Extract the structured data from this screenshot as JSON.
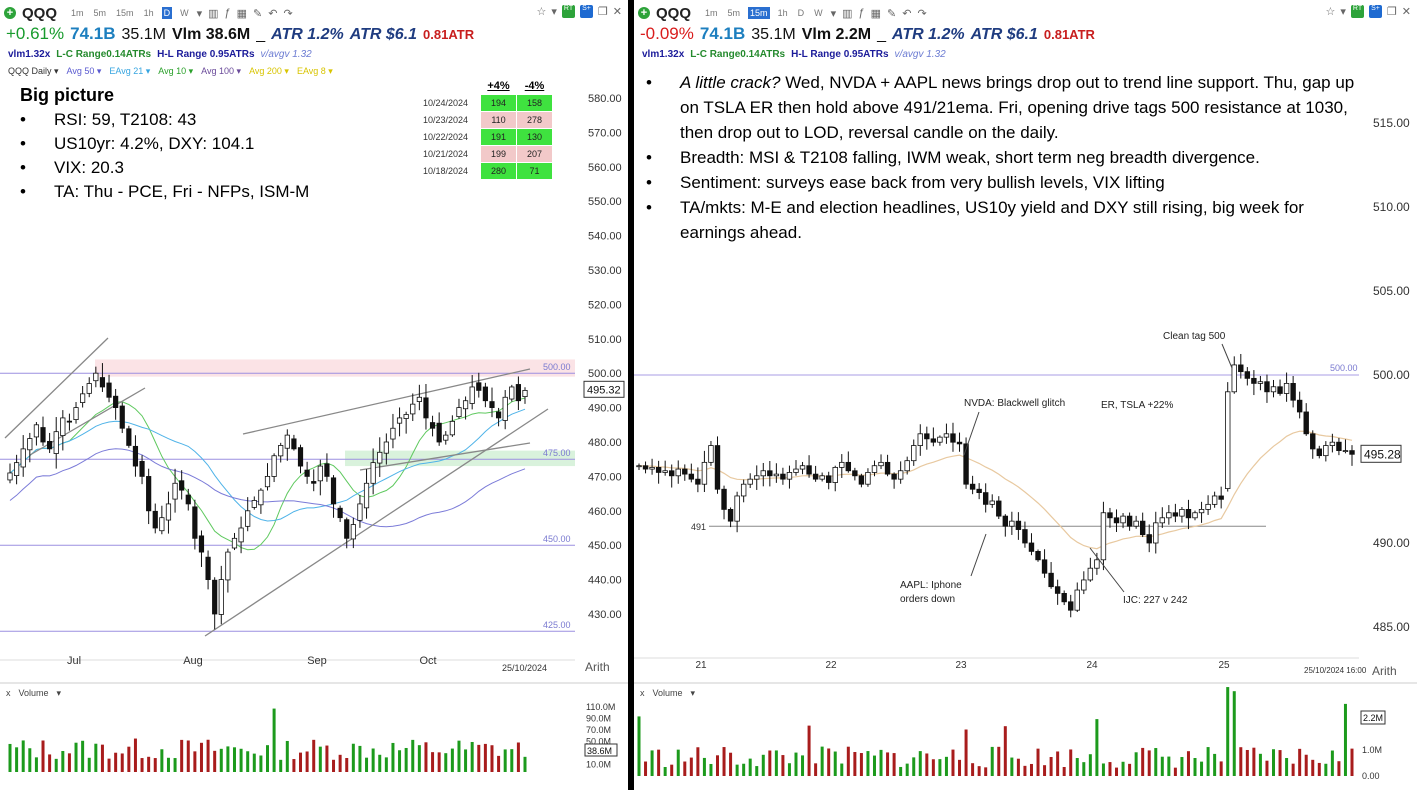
{
  "left": {
    "symbol": "QQQ",
    "intervals": [
      "1m",
      "5m",
      "15m",
      "1h",
      "D",
      "W"
    ],
    "selected_interval": "D",
    "change": "+0.61%",
    "market_cap": "74.1B",
    "avg_volume": "35.1M",
    "volume": "Vlm 38.6M",
    "atr_pct": "ATR 1.2%",
    "atr_dollar": "ATR $6.1",
    "atr_ratio": "0.81ATR",
    "vlm_ratio": "vlm1.32x",
    "lc_range": "L-C Range0.14ATRs",
    "hl_range": "H-L Range 0.95ATRs",
    "vavg": "v/avgv 1.32",
    "legend": [
      {
        "label": "QQQ Daily",
        "color": "#333333"
      },
      {
        "label": "Avg 50",
        "color": "#5a5ad0"
      },
      {
        "label": "EAvg 21",
        "color": "#37a5e0"
      },
      {
        "label": "Avg 10",
        "color": "#2aa02a"
      },
      {
        "label": "Avg 100",
        "color": "#6a4a9a"
      },
      {
        "label": "Avg 200",
        "color": "#d8c400"
      },
      {
        "label": "EAvg 8",
        "color": "#d8c400"
      }
    ],
    "big_picture_title": "Big picture",
    "big_picture": [
      "RSI: 59, T2108: 43",
      "US10yr: 4.2%, DXY: 104.1",
      "VIX: 20.3",
      "TA: Thu - PCE, Fri - NFPs, ISM-M"
    ],
    "breadth_headers": [
      "+4%",
      "-4%"
    ],
    "breadth_rows": [
      {
        "date": "10/24/2024",
        "up": "194",
        "down": "158",
        "up_color": "#3fe23f",
        "down_color": "#3fe23f"
      },
      {
        "date": "10/23/2024",
        "up": "110",
        "down": "278",
        "up_color": "#f2c9c9",
        "down_color": "#f2c9c9"
      },
      {
        "date": "10/22/2024",
        "up": "191",
        "down": "130",
        "up_color": "#3fe23f",
        "down_color": "#3fe23f"
      },
      {
        "date": "10/21/2024",
        "up": "199",
        "down": "207",
        "up_color": "#f2c9c9",
        "down_color": "#f2c9c9"
      },
      {
        "date": "10/18/2024",
        "up": "280",
        "down": "71",
        "up_color": "#3fe23f",
        "down_color": "#3fe23f"
      }
    ],
    "price_axis": [
      "580.00",
      "570.00",
      "560.00",
      "550.00",
      "540.00",
      "530.00",
      "520.00",
      "510.00",
      "500.00",
      "490.00",
      "480.00",
      "470.00",
      "460.00",
      "450.00",
      "440.00",
      "430.00"
    ],
    "last_price": "495.32",
    "level_labels": [
      "500.00",
      "475.00",
      "450.00",
      "425.00"
    ],
    "months": [
      "Jul",
      "Aug",
      "Sep",
      "Oct"
    ],
    "date_label": "25/10/2024",
    "scale_label": "Arith",
    "volume_label": "Volume",
    "volume_axis": [
      "110.0M",
      "90.0M",
      "70.0M",
      "50.0M",
      "30.0M",
      "10.0M"
    ],
    "last_volume": "38.6M"
  },
  "right": {
    "symbol": "QQQ",
    "intervals": [
      "1m",
      "5m",
      "15m",
      "1h",
      "D",
      "W"
    ],
    "selected_interval": "15m",
    "change": "-0.09%",
    "market_cap": "74.1B",
    "avg_volume": "35.1M",
    "volume": "Vlm 2.2M",
    "atr_pct": "ATR 1.2%",
    "atr_dollar": "ATR $6.1",
    "atr_ratio": "0.81ATR",
    "vlm_ratio": "vlm1.32x",
    "lc_range": "L-C Range0.14ATRs",
    "hl_range": "H-L Range 0.95ATRs",
    "vavg": "v/avgv 1.32",
    "notes": [
      {
        "lead": "A little crack?",
        "text": "  Wed, NVDA + AAPL news brings drop out to trend line support. Thu, gap up on TSLA ER then hold above 491/21ema.  Fri, opening drive tags 500 resistance at 1030, then drop out to LOD, reversal candle on the daily."
      },
      {
        "lead": "",
        "text": "Breadth: MSI & T2108 falling, IWM weak, short term neg breadth divergence."
      },
      {
        "lead": "",
        "text": "Sentiment: surveys ease back from very bullish levels, VIX lifting"
      },
      {
        "lead": "",
        "text": "TA/mkts: M-E and election headlines, US10y yield and DXY still rising, big week for earnings ahead."
      }
    ],
    "annotations": {
      "clean_tag": "Clean tag 500",
      "nvda": "NVDA: Blackwell glitch",
      "er": "ER, TSLA +22%",
      "aapl_line1": "AAPL: Iphone",
      "aapl_line2": "orders down",
      "ijc": "IJC: 227 v 242",
      "level_491": "491",
      "level_500": "500.00"
    },
    "price_axis": [
      "515.00",
      "510.00",
      "505.00",
      "500.00",
      "490.00",
      "485.00"
    ],
    "last_price": "495.28",
    "days": [
      "21",
      "22",
      "23",
      "24",
      "25"
    ],
    "date_label": "25/10/2024 16:00",
    "scale_label": "Arith",
    "volume_label": "Volume",
    "volume_axis": [
      "1.0M",
      "0.00"
    ],
    "last_volume": "2.2M"
  },
  "chart_data": [
    {
      "type": "candlestick",
      "title": "QQQ Daily",
      "x_ticks": [
        "Jul",
        "Aug",
        "Sep",
        "Oct"
      ],
      "ylim": [
        425,
        585
      ],
      "levels": [
        500,
        475,
        450,
        425
      ],
      "last": 495.32,
      "closes_approx": [
        471,
        474,
        478,
        481,
        485,
        480,
        478,
        483,
        487,
        486,
        490,
        494,
        497,
        500,
        496,
        493,
        490,
        484,
        479,
        473,
        470,
        460,
        455,
        458,
        462,
        468,
        466,
        462,
        452,
        448,
        440,
        430,
        440,
        448,
        452,
        455,
        460,
        463,
        466,
        470,
        476,
        479,
        482,
        478,
        473,
        470,
        468,
        473,
        470,
        462,
        458,
        452,
        456,
        462,
        468,
        474,
        477,
        480,
        484,
        487,
        488,
        491,
        493,
        487,
        484,
        480,
        482,
        486,
        490,
        492,
        496,
        495,
        492,
        490,
        487,
        493,
        496,
        492,
        495
      ]
    },
    {
      "type": "candlestick",
      "title": "QQQ 15m",
      "x_ticks": [
        "21",
        "22",
        "23",
        "24",
        "25"
      ],
      "ylim": [
        484,
        518
      ],
      "levels": [
        500,
        491
      ],
      "last": 495.28,
      "closes_approx": [
        494.6,
        494.4,
        494.5,
        494.2,
        494.3,
        494.0,
        494.4,
        494.1,
        493.8,
        493.5,
        494.8,
        495.8,
        493.2,
        492.0,
        491.3,
        492.8,
        493.5,
        493.8,
        494.0,
        494.3,
        494.0,
        494.1,
        493.8,
        494.2,
        494.4,
        494.6,
        494.1,
        493.8,
        494.0,
        493.6,
        494.5,
        494.8,
        494.3,
        494.0,
        493.5,
        494.2,
        494.6,
        494.8,
        494.1,
        493.8,
        494.3,
        494.9,
        495.8,
        496.5,
        496.2,
        496.0,
        496.3,
        496.5,
        496.0,
        495.9,
        493.5,
        493.2,
        493.0,
        492.3,
        492.5,
        491.6,
        491.0,
        491.3,
        490.8,
        490.0,
        489.5,
        489.0,
        488.2,
        487.4,
        487.0,
        486.5,
        486.0,
        487.2,
        487.8,
        488.5,
        489.0,
        491.8,
        491.5,
        491.2,
        491.6,
        491.0,
        491.3,
        490.5,
        490.0,
        491.2,
        491.5,
        491.8,
        491.6,
        492.0,
        491.5,
        491.8,
        492.0,
        492.3,
        492.8,
        492.6,
        499.0,
        500.6,
        500.2,
        499.8,
        499.5,
        499.6,
        499.0,
        499.3,
        498.9,
        499.5,
        498.5,
        497.8,
        496.5,
        495.6,
        495.2,
        495.8,
        496.0,
        495.5,
        495.5,
        495.28
      ]
    }
  ]
}
